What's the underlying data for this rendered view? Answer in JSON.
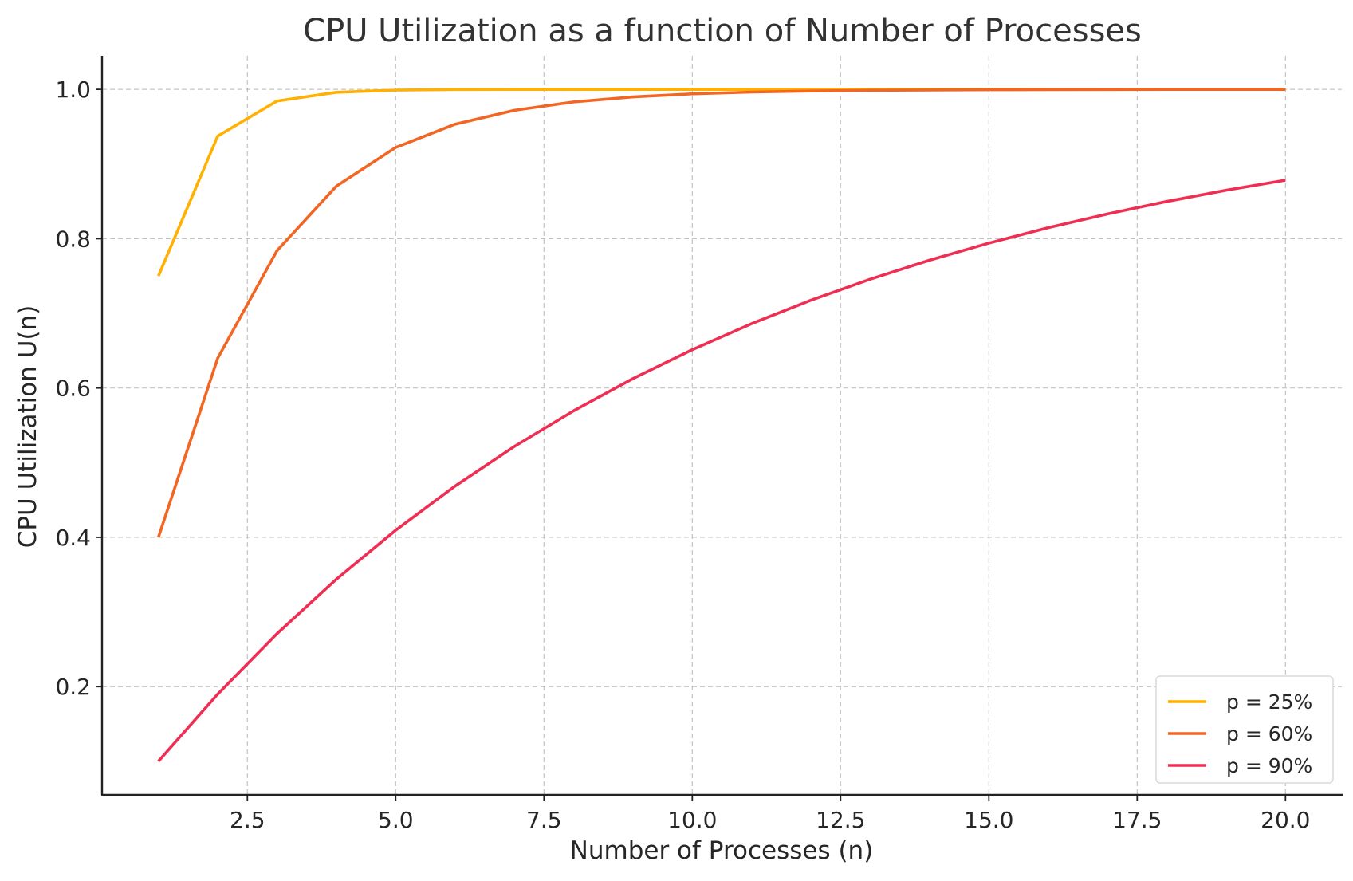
{
  "chart_data": {
    "type": "line",
    "title": "CPU Utilization as a function of Number of Processes",
    "xlabel": "Number of Processes (n)",
    "ylabel": "CPU Utilization U(n)",
    "xlim": [
      0.05,
      20.95
    ],
    "ylim": [
      0.055,
      1.045
    ],
    "xticks": [
      2.5,
      5.0,
      7.5,
      10.0,
      12.5,
      15.0,
      17.5,
      20.0
    ],
    "xtick_labels": [
      "2.5",
      "5.0",
      "7.5",
      "10.0",
      "12.5",
      "15.0",
      "17.5",
      "20.0"
    ],
    "yticks": [
      0.2,
      0.4,
      0.6,
      0.8,
      1.0
    ],
    "ytick_labels": [
      "0.2",
      "0.4",
      "0.6",
      "0.8",
      "1.0"
    ],
    "grid": true,
    "legend_position": "lower-right",
    "x": [
      1,
      2,
      3,
      4,
      5,
      6,
      7,
      8,
      9,
      10,
      11,
      12,
      13,
      14,
      15,
      16,
      17,
      18,
      19,
      20
    ],
    "series": [
      {
        "name": "p = 25%",
        "color": "#FFB000",
        "values": [
          0.75,
          0.9375,
          0.9844,
          0.9961,
          0.999,
          0.9998,
          0.9999,
          1.0,
          1.0,
          1.0,
          1.0,
          1.0,
          1.0,
          1.0,
          1.0,
          1.0,
          1.0,
          1.0,
          1.0,
          1.0
        ]
      },
      {
        "name": "p = 60%",
        "color": "#F26522",
        "values": [
          0.4,
          0.64,
          0.784,
          0.8704,
          0.9222,
          0.9533,
          0.972,
          0.9832,
          0.9899,
          0.994,
          0.9964,
          0.9978,
          0.9987,
          0.9992,
          0.9995,
          0.9997,
          0.9998,
          0.9999,
          0.9999,
          1.0
        ]
      },
      {
        "name": "p = 90%",
        "color": "#EE2F53",
        "values": [
          0.1,
          0.19,
          0.271,
          0.3439,
          0.4095,
          0.4686,
          0.5217,
          0.5695,
          0.6126,
          0.6513,
          0.6862,
          0.7176,
          0.7458,
          0.7712,
          0.7941,
          0.8147,
          0.8332,
          0.8499,
          0.8649,
          0.8784
        ]
      }
    ]
  }
}
